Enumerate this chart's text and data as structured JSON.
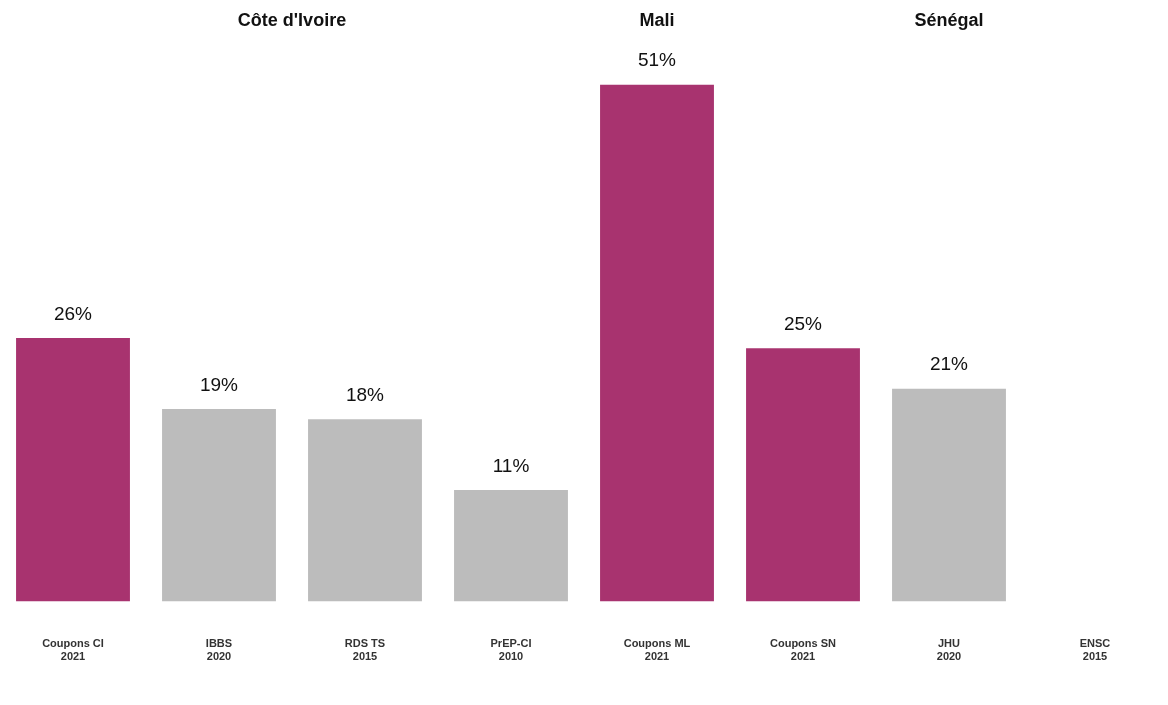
{
  "chart_data": {
    "type": "bar",
    "categories": [
      "Coupons CI\n2021",
      "IBBS\n2020",
      "RDS TS\n2015",
      "PrEP-CI\n2010",
      "Coupons ML\n2021",
      "Coupons SN\n2021",
      "JHU\n2020",
      "ENSC\n2015"
    ],
    "values": [
      26,
      19,
      18,
      11,
      51,
      25,
      21,
      null
    ],
    "colors": [
      "#a8336f",
      "#bcbcbc",
      "#bcbcbc",
      "#bcbcbc",
      "#a8336f",
      "#a8336f",
      "#bcbcbc",
      "#bcbcbc"
    ],
    "value_labels": [
      "26%",
      "19%",
      "18%",
      "11%",
      "51%",
      "25%",
      "21%",
      null
    ],
    "annotations": [
      "Côte d'Ivoire",
      "Mali",
      "Sénégal"
    ],
    "grid": false,
    "legend": false,
    "tick_labels": "x"
  }
}
